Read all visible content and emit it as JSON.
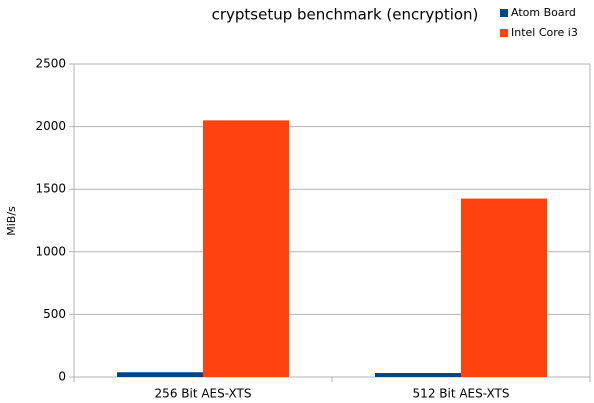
{
  "chart_data": {
    "type": "bar",
    "title": "cryptsetup benchmark (encryption)",
    "y_label": "MiB/s",
    "categories": [
      "256 Bit AES-XTS",
      "512 Bit AES-XTS"
    ],
    "series": [
      {
        "name": "Atom Board",
        "color": "#004586",
        "values": [
          38,
          32
        ]
      },
      {
        "name": "Intel Core i3",
        "color": "#ff420e",
        "values": [
          2050,
          1425
        ]
      }
    ],
    "ylim": [
      0,
      2500
    ],
    "yticks": [
      0,
      500,
      1000,
      1500,
      2000,
      2500
    ],
    "grid": true,
    "legend": "top-right"
  }
}
